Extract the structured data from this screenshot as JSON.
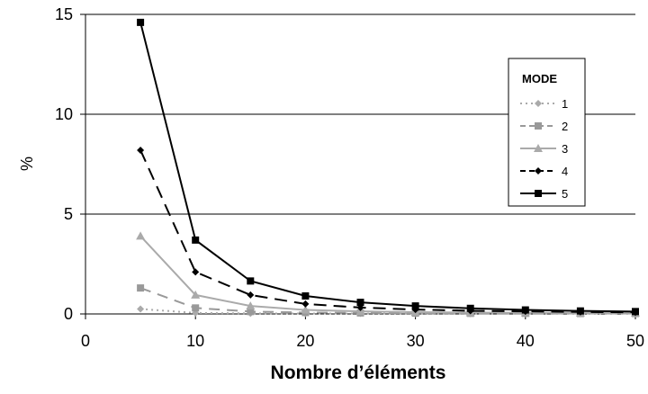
{
  "chart_data": {
    "type": "line",
    "title": "",
    "xlabel": "Nombre d’éléments",
    "ylabel": "%",
    "xlim": [
      0,
      50
    ],
    "ylim": [
      0,
      15
    ],
    "xticks": [
      0,
      10,
      20,
      30,
      40,
      50
    ],
    "yticks": [
      0,
      5,
      10,
      15
    ],
    "grid": "horizontal",
    "legend": {
      "title": "MODE",
      "placement": "right"
    },
    "x": [
      5,
      10,
      15,
      20,
      25,
      30,
      35,
      40,
      45,
      50
    ],
    "series": [
      {
        "name": "1",
        "color": "#aaaaaa",
        "dash": "2,4",
        "marker": "diamond",
        "values": [
          0.25,
          0.05,
          0.03,
          0.02,
          0.02,
          0.01,
          0.01,
          0.01,
          0.01,
          0.01
        ]
      },
      {
        "name": "2",
        "color": "#999999",
        "dash": "12,8",
        "marker": "square",
        "values": [
          1.3,
          0.3,
          0.12,
          0.07,
          0.05,
          0.04,
          0.03,
          0.03,
          0.02,
          0.02
        ]
      },
      {
        "name": "3",
        "color": "#aaaaaa",
        "dash": "",
        "marker": "triangle",
        "values": [
          3.9,
          0.95,
          0.4,
          0.2,
          0.13,
          0.09,
          0.07,
          0.06,
          0.05,
          0.05
        ]
      },
      {
        "name": "4",
        "color": "#000000",
        "dash": "14,8",
        "marker": "diamond",
        "values": [
          8.2,
          2.1,
          0.95,
          0.5,
          0.32,
          0.22,
          0.16,
          0.13,
          0.1,
          0.08
        ]
      },
      {
        "name": "5",
        "color": "#000000",
        "dash": "",
        "marker": "square",
        "values": [
          14.6,
          3.7,
          1.65,
          0.9,
          0.58,
          0.4,
          0.28,
          0.2,
          0.15,
          0.12
        ]
      }
    ]
  }
}
